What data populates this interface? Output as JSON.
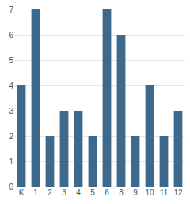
{
  "chart_data": {
    "type": "bar",
    "categories": [
      "K",
      "1",
      "2",
      "3",
      "4",
      "5",
      "6",
      "8",
      "9",
      "10",
      "11",
      "12"
    ],
    "values": [
      4,
      7,
      2,
      3,
      3,
      2,
      7,
      6,
      2,
      4,
      2,
      3
    ],
    "color": "#3d6a8c",
    "ylim": [
      0,
      7
    ],
    "yticks": [
      0,
      1,
      2,
      3,
      4,
      5,
      6,
      7
    ],
    "grid": true
  }
}
